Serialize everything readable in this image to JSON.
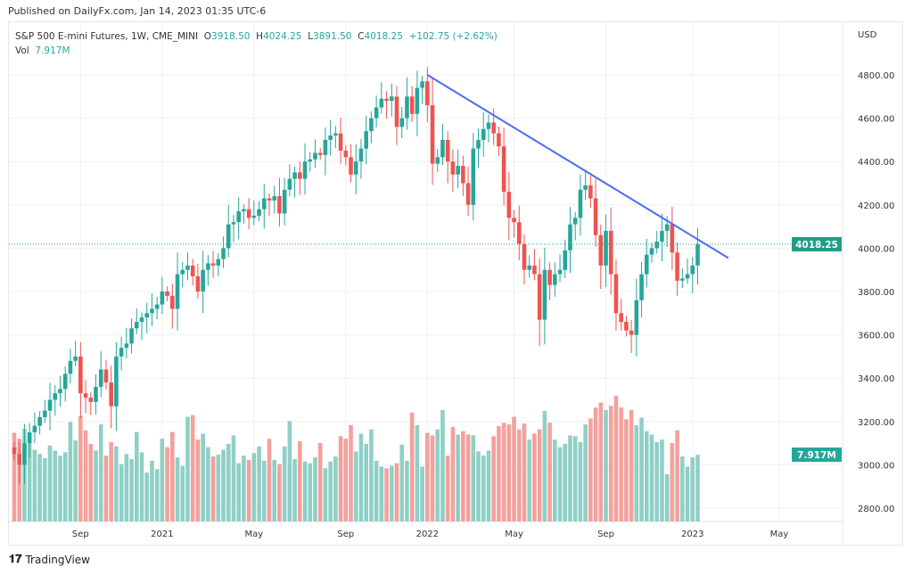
{
  "header": {
    "published": "Published on DailyFx.com, Jan 14, 2023 01:35 UTC-6",
    "brand": "TradingView"
  },
  "legend": {
    "symbol": "S&P 500 E-mini Futures, 1W, CME_MINI",
    "o_label": "O",
    "o": "3918.50",
    "h_label": "H",
    "h": "4024.25",
    "l_label": "L",
    "l": "3891.50",
    "c_label": "C",
    "c": "4018.25",
    "change": "+102.75 (+2.62%)",
    "vol_label": "Vol",
    "vol": "7.917M"
  },
  "colors": {
    "up": "#26a69a",
    "down": "#ef5350",
    "upVol": "#8fd0c6",
    "downVol": "#f4a09c",
    "trend": "#4a6cf7"
  },
  "chart_data": {
    "type": "candlestick",
    "currency": "USD",
    "ylim": [
      2700,
      4900
    ],
    "yticks": [
      "4800.00",
      "4600.00",
      "4400.00",
      "4200.00",
      "4000.00",
      "3800.00",
      "3600.00",
      "3400.00",
      "3200.00",
      "3000.00",
      "2800.00"
    ],
    "ytick_values": [
      4800,
      4600,
      4400,
      4200,
      4000,
      3800,
      3600,
      3400,
      3200,
      3000,
      2800
    ],
    "xticks": [
      {
        "label": "Sep",
        "week": 13
      },
      {
        "label": "2021",
        "week": 29
      },
      {
        "label": "May",
        "week": 47
      },
      {
        "label": "Sep",
        "week": 65
      },
      {
        "label": "2022",
        "week": 81
      },
      {
        "label": "May",
        "week": 98
      },
      {
        "label": "Sep",
        "week": 116
      },
      {
        "label": "2023",
        "week": 133
      },
      {
        "label": "May",
        "week": 150
      }
    ],
    "last_price": "4018.25",
    "last_value": 4018.25,
    "last_volume": "7.917M",
    "first_open": 3080,
    "closes": [
      3050,
      3000,
      3100,
      3150,
      3180,
      3220,
      3250,
      3300,
      3330,
      3350,
      3420,
      3480,
      3500,
      3330,
      3310,
      3290,
      3360,
      3440,
      3380,
      3270,
      3500,
      3540,
      3560,
      3630,
      3660,
      3680,
      3700,
      3720,
      3740,
      3800,
      3780,
      3720,
      3880,
      3900,
      3920,
      3870,
      3800,
      3900,
      3930,
      3920,
      3950,
      4000,
      4110,
      4120,
      4170,
      4180,
      4140,
      4150,
      4180,
      4230,
      4220,
      4240,
      4160,
      4270,
      4320,
      4350,
      4320,
      4400,
      4410,
      4440,
      4430,
      4500,
      4520,
      4530,
      4450,
      4420,
      4340,
      4400,
      4460,
      4540,
      4600,
      4650,
      4690,
      4680,
      4700,
      4560,
      4600,
      4700,
      4620,
      4740,
      4770,
      4660,
      4390,
      4420,
      4500,
      4400,
      4340,
      4380,
      4300,
      4200,
      4460,
      4500,
      4550,
      4580,
      4530,
      4470,
      4260,
      4140,
      4120,
      4020,
      3900,
      3920,
      3880,
      3670,
      3900,
      3830,
      3880,
      3900,
      3990,
      4110,
      4140,
      4270,
      4290,
      4230,
      4060,
      3920,
      4080,
      3880,
      3700,
      3660,
      3620,
      3600,
      3760,
      3880,
      3970,
      4000,
      4030,
      4080,
      4110,
      3980,
      3850,
      3860,
      3880,
      3920,
      4018.25
    ],
    "volumes_m": [
      10.5,
      9.8,
      11,
      10.2,
      8.5,
      8,
      7.5,
      9,
      8.4,
      7.8,
      8.2,
      11.8,
      9.6,
      12.5,
      10.8,
      9.2,
      8.4,
      11.5,
      7.8,
      9.4,
      8.9,
      6.8,
      8,
      7.4,
      10.6,
      8.2,
      5.8,
      7.2,
      6.2,
      9.8,
      8.8,
      10.6,
      7.6,
      6.6,
      12.4,
      12.6,
      9.7,
      10.4,
      8.8,
      7.7,
      7.9,
      8.5,
      9.2,
      10.2,
      6.9,
      7.8,
      7.3,
      8.1,
      8.9,
      7.2,
      9.8,
      7.3,
      6.8,
      8.9,
      11.9,
      7.4,
      9.5,
      7.1,
      6.9,
      7.6,
      9.3,
      6.3,
      7.1,
      7.7,
      10.1,
      9.8,
      11.4,
      8.3,
      10.4,
      9.2,
      10.9,
      7.2,
      6.5,
      6.3,
      6.6,
      6.9,
      9.1,
      7.2,
      12.9,
      11.4,
      6.5,
      10.5,
      10.2,
      10.9,
      13.2,
      7.8,
      11.2,
      10.3,
      10.7,
      10.3,
      10.2,
      8.3,
      7.8,
      8.4,
      10.1,
      11.3,
      11.7,
      11.5,
      12.4,
      10.9,
      11.6,
      9.7,
      10.4,
      10.9,
      13.1,
      11.7,
      9.7,
      8.8,
      9.2,
      10.2,
      10.1,
      9.4,
      11.5,
      12.2,
      13.5,
      14.1,
      13.2,
      13.7,
      14.9,
      13.5,
      12.1,
      13.2,
      11.4,
      12.3,
      10.7,
      10.3,
      9.4,
      9.7,
      5.6,
      9.3,
      10.8,
      7.7,
      6.5,
      7.6,
      7.9
    ],
    "trendline": [
      {
        "week": 81,
        "price": 4800
      },
      {
        "week": 140,
        "price": 3955
      }
    ]
  }
}
